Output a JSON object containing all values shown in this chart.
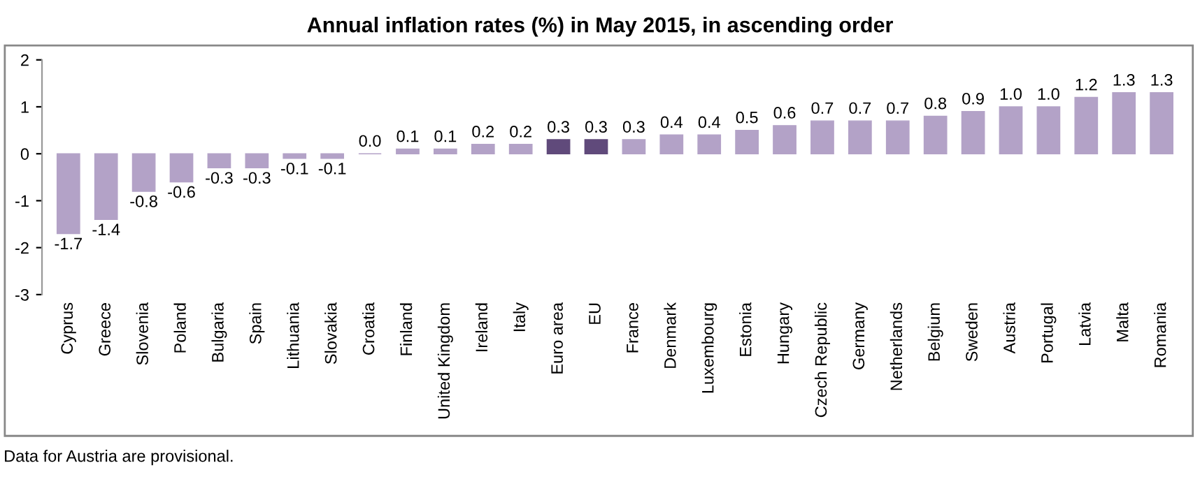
{
  "chart_data": {
    "type": "bar",
    "title": "Annual inflation rates (%) in May 2015, in ascending order",
    "categories": [
      "Cyprus",
      "Greece",
      "Slovenia",
      "Poland",
      "Bulgaria",
      "Spain",
      "Lithuania",
      "Slovakia",
      "Croatia",
      "Finland",
      "United Kingdom",
      "Ireland",
      "Italy",
      "Euro area",
      "EU",
      "France",
      "Denmark",
      "Luxembourg",
      "Estonia",
      "Hungary",
      "Czech Republic",
      "Germany",
      "Netherlands",
      "Belgium",
      "Sweden",
      "Austria",
      "Portugal",
      "Latvia",
      "Malta",
      "Romania"
    ],
    "values": [
      -1.7,
      -1.4,
      -0.8,
      -0.6,
      -0.3,
      -0.3,
      -0.1,
      -0.1,
      0.0,
      0.1,
      0.1,
      0.2,
      0.2,
      0.3,
      0.3,
      0.3,
      0.4,
      0.4,
      0.5,
      0.6,
      0.7,
      0.7,
      0.7,
      0.8,
      0.9,
      1.0,
      1.0,
      1.2,
      1.3,
      1.3
    ],
    "value_labels": [
      "-1.7",
      "-1.4",
      "-0.8",
      "-0.6",
      "-0.3",
      "-0.3",
      "-0.1",
      "-0.1",
      "0.0",
      "0.1",
      "0.1",
      "0.2",
      "0.2",
      "0.3",
      "0.3",
      "0.3",
      "0.4",
      "0.4",
      "0.5",
      "0.6",
      "0.7",
      "0.7",
      "0.7",
      "0.8",
      "0.9",
      "1.0",
      "1.0",
      "1.2",
      "1.3",
      "1.3"
    ],
    "colors": [
      "#b3a2c7",
      "#b3a2c7",
      "#b3a2c7",
      "#b3a2c7",
      "#b3a2c7",
      "#b3a2c7",
      "#b3a2c7",
      "#b3a2c7",
      "#b3a2c7",
      "#b3a2c7",
      "#b3a2c7",
      "#b3a2c7",
      "#b3a2c7",
      "#604a7b",
      "#604a7b",
      "#b3a2c7",
      "#b3a2c7",
      "#b3a2c7",
      "#b3a2c7",
      "#b3a2c7",
      "#b3a2c7",
      "#b3a2c7",
      "#b3a2c7",
      "#b3a2c7",
      "#b3a2c7",
      "#b3a2c7",
      "#b3a2c7",
      "#b3a2c7",
      "#b3a2c7",
      "#b3a2c7"
    ],
    "ylim": [
      -3,
      2
    ],
    "yticks": [
      -3,
      -2,
      -1,
      0,
      1,
      2
    ],
    "grid": false,
    "legend": false,
    "annotations": [
      "Data for Austria are provisional."
    ]
  }
}
